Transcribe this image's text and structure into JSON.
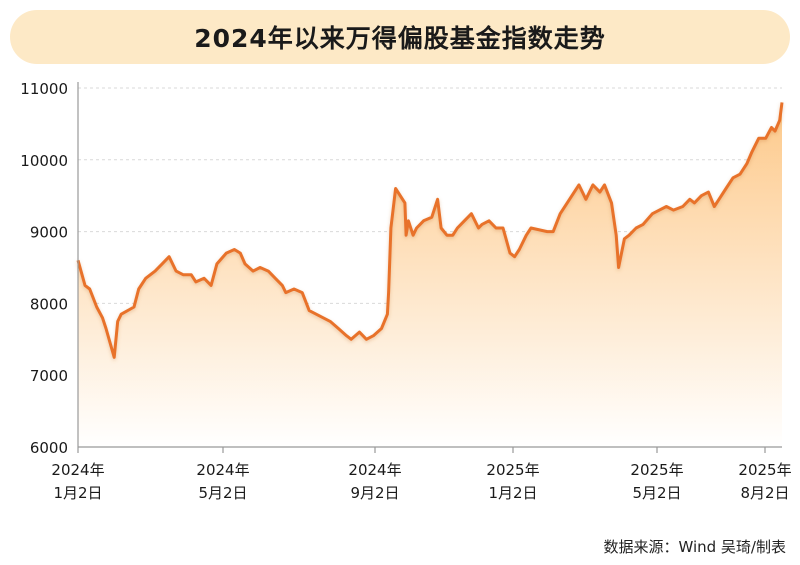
{
  "chart_data": {
    "type": "area",
    "title": "2024年以来万得偏股基金指数走势",
    "source": "数据来源：Wind  吴琦/制表",
    "ylim": [
      6000,
      11000
    ],
    "yticks": [
      "11000",
      "10000",
      "9000",
      "8000",
      "7000",
      "6000"
    ],
    "xticks": [
      {
        "year": "2024年",
        "date": "1月2日"
      },
      {
        "year": "2024年",
        "date": "5月2日"
      },
      {
        "year": "2024年",
        "date": "9月2日"
      },
      {
        "year": "2025年",
        "date": "1月2日"
      },
      {
        "year": "2025年",
        "date": "5月2日"
      },
      {
        "year": "2025年",
        "date": "8月2日"
      }
    ],
    "colors": {
      "line": "#e8722c",
      "area_top": "#fdc98a",
      "area_bottom": "#ffffff",
      "title_bg": "#fde9c6",
      "axis": "#999999"
    },
    "series": [
      {
        "x": [
          "2024-01-02",
          "2024-01-08",
          "2024-01-12",
          "2024-01-18",
          "2024-01-23",
          "2024-01-26",
          "2024-02-02",
          "2024-02-05",
          "2024-02-08",
          "2024-02-19",
          "2024-02-23",
          "2024-02-29",
          "2024-03-08",
          "2024-03-14",
          "2024-03-20",
          "2024-03-26",
          "2024-04-01",
          "2024-04-08",
          "2024-04-12",
          "2024-04-19",
          "2024-04-25",
          "2024-04-30",
          "2024-05-08",
          "2024-05-15",
          "2024-05-20",
          "2024-05-24",
          "2024-05-31",
          "2024-06-06",
          "2024-06-13",
          "2024-06-19",
          "2024-06-25",
          "2024-06-28",
          "2024-07-05",
          "2024-07-12",
          "2024-07-18",
          "2024-07-24",
          "2024-07-30",
          "2024-08-05",
          "2024-08-12",
          "2024-08-19",
          "2024-08-23",
          "2024-08-30",
          "2024-09-05",
          "2024-09-11",
          "2024-09-18",
          "2024-09-23",
          "2024-09-24",
          "2024-09-26",
          "2024-09-30",
          "2024-10-08",
          "2024-10-09",
          "2024-10-11",
          "2024-10-15",
          "2024-10-18",
          "2024-10-24",
          "2024-10-31",
          "2024-11-05",
          "2024-11-08",
          "2024-11-13",
          "2024-11-18",
          "2024-11-22",
          "2024-11-28",
          "2024-12-04",
          "2024-12-10",
          "2024-12-13",
          "2024-12-19",
          "2024-12-25",
          "2024-12-31",
          "2025-01-06",
          "2025-01-10",
          "2025-01-14",
          "2025-01-20",
          "2025-01-24",
          "2025-02-07",
          "2025-02-12",
          "2025-02-18",
          "2025-02-24",
          "2025-02-28",
          "2025-03-06",
          "2025-03-12",
          "2025-03-18",
          "2025-03-24",
          "2025-03-28",
          "2025-04-03",
          "2025-04-07",
          "2025-04-09",
          "2025-04-14",
          "2025-04-18",
          "2025-04-24",
          "2025-04-30",
          "2025-05-08",
          "2025-05-14",
          "2025-05-20",
          "2025-05-26",
          "2025-06-03",
          "2025-06-09",
          "2025-06-13",
          "2025-06-19",
          "2025-06-25",
          "2025-06-30",
          "2025-07-04",
          "2025-07-10",
          "2025-07-16",
          "2025-07-22",
          "2025-07-28",
          "2025-08-01",
          "2025-08-07",
          "2025-08-13",
          "2025-08-18",
          "2025-08-21",
          "2025-08-25",
          "2025-08-27"
        ],
        "y": [
          8600,
          8250,
          8200,
          7950,
          7800,
          7650,
          7250,
          7750,
          7850,
          7950,
          8200,
          8350,
          8450,
          8550,
          8650,
          8450,
          8400,
          8400,
          8300,
          8350,
          8250,
          8550,
          8700,
          8750,
          8700,
          8550,
          8450,
          8500,
          8450,
          8350,
          8250,
          8150,
          8200,
          8150,
          7900,
          7850,
          7800,
          7750,
          7650,
          7550,
          7500,
          7600,
          7500,
          7550,
          7650,
          7850,
          8150,
          9050,
          9600,
          9400,
          8950,
          9150,
          8950,
          9050,
          9150,
          9200,
          9450,
          9050,
          8950,
          8950,
          9050,
          9150,
          9250,
          9050,
          9100,
          9150,
          9050,
          9050,
          8700,
          8650,
          8750,
          8950,
          9050,
          9000,
          9000,
          9250,
          9400,
          9500,
          9650,
          9450,
          9650,
          9550,
          9650,
          9400,
          8950,
          8500,
          8900,
          8950,
          9050,
          9100,
          9250,
          9300,
          9350,
          9300,
          9350,
          9450,
          9400,
          9500,
          9550,
          9350,
          9450,
          9600,
          9750,
          9800,
          9950,
          10100,
          10300,
          10300,
          10450,
          10400,
          10550,
          10800
        ]
      }
    ]
  }
}
